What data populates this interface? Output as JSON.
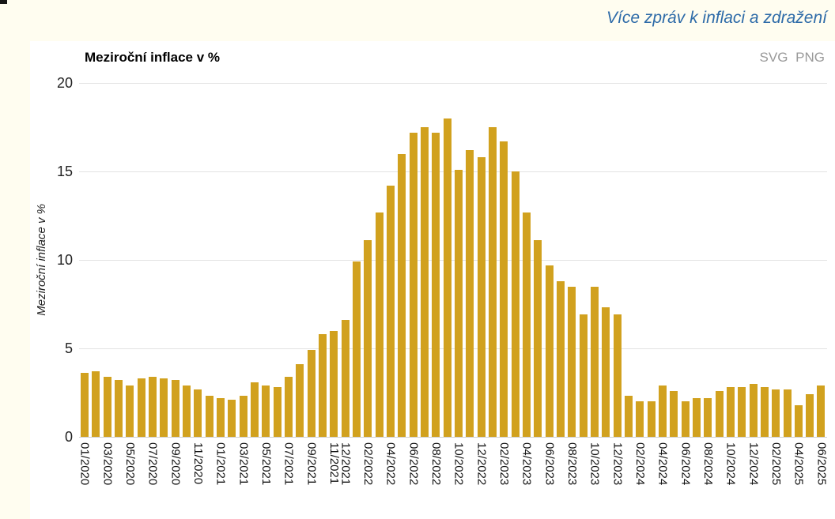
{
  "page": {
    "top_link_label": "Více zpráv k inflaci a zdražení",
    "export_links": [
      "SVG",
      "PNG"
    ],
    "colors": {
      "background": "#fffdf0",
      "bar": "#d1a11e",
      "link": "#2e6ba8",
      "export_link": "#999999",
      "grid": "#e3e3e3"
    }
  },
  "chart_data": {
    "type": "bar",
    "title": "Meziroční inflace v %",
    "ylabel": "Meziroční inflace v %",
    "xlabel": "",
    "ylim": [
      0,
      20
    ],
    "yticks": [
      0,
      5,
      10,
      15,
      20
    ],
    "grid": true,
    "legend": "none",
    "categories": [
      "01/2020",
      "02/2020",
      "03/2020",
      "04/2020",
      "05/2020",
      "06/2020",
      "07/2020",
      "08/2020",
      "09/2020",
      "10/2020",
      "11/2020",
      "12/2020",
      "01/2021",
      "02/2021",
      "03/2021",
      "04/2021",
      "05/2021",
      "06/2021",
      "07/2021",
      "08/2021",
      "09/2021",
      "10/2021",
      "11/2021",
      "12/2021",
      "01/2022",
      "02/2022",
      "03/2022",
      "04/2022",
      "05/2022",
      "06/2022",
      "07/2022",
      "08/2022",
      "09/2022",
      "10/2022",
      "11/2022",
      "12/2022",
      "01/2023",
      "02/2023",
      "03/2023",
      "04/2023",
      "05/2023",
      "06/2023",
      "07/2023",
      "08/2023",
      "09/2023",
      "10/2023",
      "11/2023",
      "12/2023",
      "01/2024",
      "02/2024",
      "03/2024",
      "04/2024",
      "05/2024",
      "06/2024",
      "07/2024",
      "08/2024",
      "09/2024",
      "10/2024",
      "11/2024",
      "12/2024",
      "01/2025",
      "02/2025",
      "03/2025",
      "04/2025",
      "05/2025",
      "06/2025"
    ],
    "values": [
      3.6,
      3.7,
      3.4,
      3.2,
      2.9,
      3.3,
      3.4,
      3.3,
      3.2,
      2.9,
      2.7,
      2.3,
      2.2,
      2.1,
      2.3,
      3.1,
      2.9,
      2.8,
      3.4,
      4.1,
      4.9,
      5.8,
      6.0,
      6.6,
      9.9,
      11.1,
      12.7,
      14.2,
      16.0,
      17.2,
      17.5,
      17.2,
      18.0,
      15.1,
      16.2,
      15.8,
      17.5,
      16.7,
      15.0,
      12.7,
      11.1,
      9.7,
      8.8,
      8.5,
      6.9,
      8.5,
      7.3,
      6.9,
      2.3,
      2.0,
      2.0,
      2.9,
      2.6,
      2.0,
      2.2,
      2.2,
      2.6,
      2.8,
      2.8,
      3.0,
      2.8,
      2.7,
      2.7,
      1.8,
      2.4,
      2.9
    ],
    "x_tick_indices": [
      0,
      2,
      4,
      6,
      8,
      10,
      12,
      14,
      16,
      18,
      20,
      22,
      23,
      25,
      27,
      29,
      31,
      33,
      35,
      37,
      39,
      41,
      43,
      45,
      47,
      49,
      51,
      53,
      55,
      57,
      59,
      61,
      63,
      65
    ],
    "x_tick_labels_shown": [
      "01/2020",
      "03/2020",
      "05/2020",
      "07/2020",
      "09/2020",
      "11/2020",
      "01/2021",
      "03/2021",
      "05/2021",
      "07/2021",
      "09/2021",
      "11/2021",
      "12/2021",
      "02/2022",
      "04/2022",
      "06/2022",
      "08/2022",
      "10/2022",
      "12/2022",
      "02/2023",
      "04/2023",
      "06/2023",
      "08/2023",
      "10/2023",
      "12/2023",
      "02/2024",
      "04/2024",
      "06/2024",
      "08/2024",
      "10/2024",
      "12/2024",
      "02/2025",
      "04/2025",
      "06/2025"
    ]
  }
}
